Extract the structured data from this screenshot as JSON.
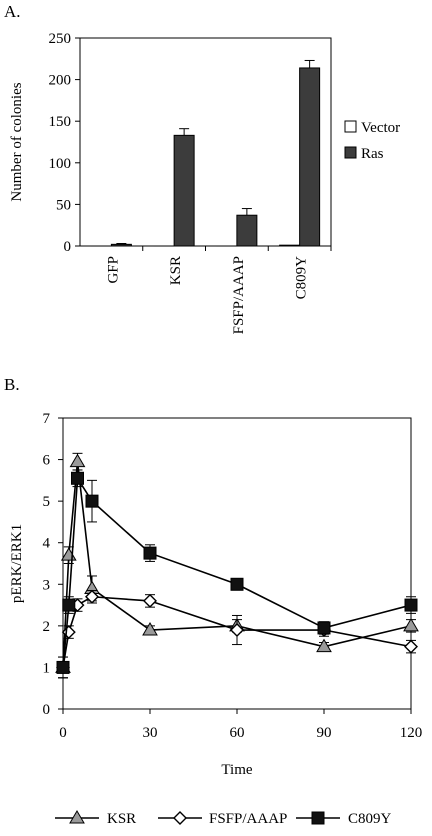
{
  "panels": {
    "a_label": "A.",
    "b_label": "B."
  },
  "colors": {
    "vector_fill": "#ffffff",
    "ras_fill": "#3c3c3c",
    "ksr_fill": "#9a9a9a",
    "fsfp_fill": "#ffffff",
    "c809y_fill": "#111111"
  },
  "chart_data": [
    {
      "type": "bar",
      "panel": "A.",
      "categories": [
        "GFP",
        "KSR",
        "FSFP/AAAP",
        "C809Y"
      ],
      "series": [
        {
          "name": "Vector",
          "values": [
            0,
            0,
            0,
            1
          ],
          "errors": [
            0,
            0,
            0,
            0
          ]
        },
        {
          "name": "Ras",
          "values": [
            2,
            133,
            37,
            214
          ],
          "errors": [
            1,
            8,
            8,
            9
          ]
        }
      ],
      "ylabel": "Number of colonies",
      "ylim": [
        0,
        250
      ],
      "yticks": [
        "0",
        "50",
        "100",
        "150",
        "200",
        "250"
      ],
      "legend_position": "right",
      "grid": false
    },
    {
      "type": "line",
      "panel": "B.",
      "xlabel": "Time",
      "ylabel": "pERK/ERK1",
      "xlim": [
        0,
        120
      ],
      "ylim": [
        0,
        7
      ],
      "xticks": [
        "0",
        "30",
        "60",
        "90",
        "120"
      ],
      "yticks": [
        "0",
        "1",
        "2",
        "3",
        "4",
        "5",
        "6",
        "7"
      ],
      "legend_position": "bottom",
      "grid": false,
      "series": [
        {
          "name": "KSR",
          "marker": "triangle",
          "x": [
            0,
            2,
            5,
            10,
            30,
            60,
            90,
            120
          ],
          "y": [
            1.0,
            3.7,
            5.95,
            2.9,
            1.9,
            2.0,
            1.5,
            2.0
          ],
          "errors": [
            0.25,
            0.2,
            0.2,
            0.3,
            0.1,
            0.15,
            0.1,
            0.15
          ]
        },
        {
          "name": "FSFP/AAAP",
          "marker": "diamond",
          "x": [
            0,
            2,
            5,
            10,
            30,
            60,
            90,
            120
          ],
          "y": [
            1.0,
            1.85,
            2.5,
            2.7,
            2.6,
            1.9,
            1.9,
            1.5
          ],
          "errors": [
            0.25,
            0.15,
            0.15,
            0.15,
            0.15,
            0.35,
            0.15,
            0.15
          ]
        },
        {
          "name": "C809Y",
          "marker": "square",
          "x": [
            0,
            2,
            5,
            10,
            30,
            60,
            90,
            120
          ],
          "y": [
            1.0,
            2.5,
            5.55,
            5.0,
            3.75,
            3.0,
            1.95,
            2.5
          ],
          "errors": [
            0.25,
            0.2,
            0.2,
            0.5,
            0.2,
            0.1,
            0.15,
            0.2
          ]
        }
      ]
    }
  ]
}
